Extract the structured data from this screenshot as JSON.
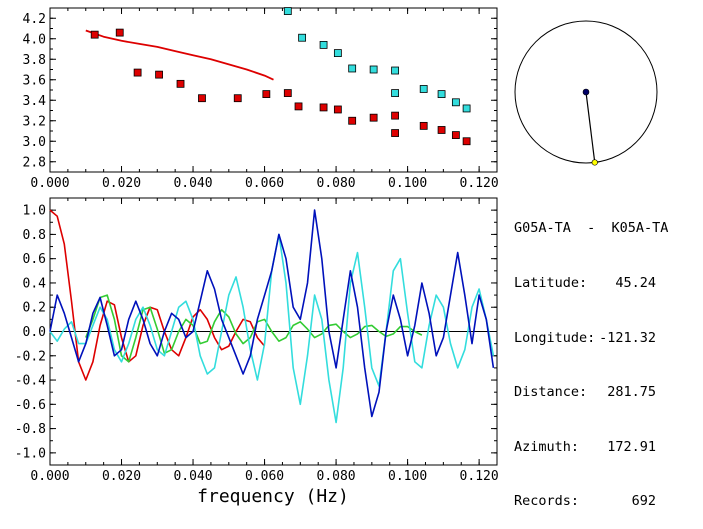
{
  "info": {
    "title": "G05A-TA  -  K05A-TA",
    "rows": [
      {
        "label": "Latitude:",
        "value": "45.24"
      },
      {
        "label": "Longitude:",
        "value": "-121.32"
      },
      {
        "label": "Distance:",
        "value": "281.75"
      },
      {
        "label": "Azimuth:",
        "value": "172.91"
      },
      {
        "label": "Records:",
        "value": "692"
      }
    ]
  },
  "azimuth_deg": 172.91,
  "colors": {
    "red": "#dd0000",
    "cyan": "#33dddd",
    "blue": "#0011bb",
    "green": "#33cc33",
    "station": "#000066",
    "marker": "#ffff00"
  },
  "chart_data": [
    {
      "type": "scatter",
      "xlabel": "",
      "ylabel": "",
      "xlim": [
        0.0,
        0.125
      ],
      "ylim": [
        2.7,
        4.3
      ],
      "xticks": [
        "0.000",
        "0.020",
        "0.040",
        "0.060",
        "0.080",
        "0.100",
        "0.120"
      ],
      "yticks": [
        "2.8",
        "3.0",
        "3.2",
        "3.4",
        "3.6",
        "3.8",
        "4.0",
        "4.2"
      ],
      "series": [
        {
          "color": "red",
          "mode": "line",
          "x": [
            0.01,
            0.015,
            0.02,
            0.025,
            0.03,
            0.035,
            0.04,
            0.045,
            0.05,
            0.055,
            0.06,
            0.0625
          ],
          "y": [
            4.08,
            4.02,
            3.98,
            3.95,
            3.92,
            3.88,
            3.84,
            3.8,
            3.75,
            3.7,
            3.64,
            3.6
          ]
        },
        {
          "color": "red",
          "mode": "markers",
          "x": [
            0.0125,
            0.0195,
            0.0245,
            0.0305,
            0.0365,
            0.0425,
            0.0525,
            0.0605,
            0.0665,
            0.0695,
            0.0765,
            0.0805,
            0.0845,
            0.0905,
            0.0965,
            0.0965,
            0.1045,
            0.1095,
            0.1135,
            0.1165
          ],
          "y": [
            4.04,
            4.06,
            3.67,
            3.65,
            3.56,
            3.42,
            3.42,
            3.46,
            3.47,
            3.34,
            3.33,
            3.31,
            3.2,
            3.23,
            3.25,
            3.08,
            3.15,
            3.11,
            3.06,
            3.0
          ]
        },
        {
          "color": "cyan",
          "mode": "markers",
          "x": [
            0.0665,
            0.0705,
            0.0765,
            0.0805,
            0.0845,
            0.0905,
            0.0965,
            0.0965,
            0.1045,
            0.1095,
            0.1135,
            0.1165
          ],
          "y": [
            4.27,
            4.01,
            3.94,
            3.86,
            3.71,
            3.7,
            3.69,
            3.47,
            3.51,
            3.46,
            3.38,
            3.32
          ]
        }
      ]
    },
    {
      "type": "line",
      "xlabel": "frequency (Hz)",
      "ylabel": "",
      "xlim": [
        0.0,
        0.125
      ],
      "ylim": [
        -1.1,
        1.1
      ],
      "xticks": [
        "0.000",
        "0.020",
        "0.040",
        "0.060",
        "0.080",
        "0.100",
        "0.120"
      ],
      "yticks": [
        "1.0",
        "0.8",
        "0.6",
        "0.4",
        "0.2",
        "0.0",
        "-0.2",
        "-0.4",
        "-0.6",
        "-0.8",
        "-1.0"
      ],
      "series": [
        {
          "color": "red",
          "x": [
            0.0,
            0.002,
            0.004,
            0.006,
            0.008,
            0.01,
            0.012,
            0.014,
            0.016,
            0.018,
            0.02,
            0.022,
            0.024,
            0.026,
            0.028,
            0.03,
            0.032,
            0.034,
            0.036,
            0.038,
            0.04,
            0.042,
            0.044,
            0.046,
            0.048,
            0.05,
            0.052,
            0.054,
            0.056,
            0.058,
            0.06
          ],
          "y": [
            1.0,
            0.95,
            0.72,
            0.25,
            -0.25,
            -0.4,
            -0.25,
            0.05,
            0.25,
            0.22,
            -0.05,
            -0.25,
            -0.2,
            0.05,
            0.2,
            0.18,
            0.0,
            -0.15,
            -0.2,
            -0.05,
            0.12,
            0.18,
            0.1,
            -0.05,
            -0.15,
            -0.12,
            0.0,
            0.1,
            0.08,
            -0.05,
            -0.12
          ]
        },
        {
          "color": "green",
          "x": [
            0.01,
            0.012,
            0.014,
            0.016,
            0.018,
            0.02,
            0.022,
            0.024,
            0.026,
            0.028,
            0.03,
            0.032,
            0.034,
            0.036,
            0.038,
            0.04,
            0.042,
            0.044,
            0.046,
            0.048,
            0.05,
            0.052,
            0.054,
            0.056,
            0.058,
            0.06,
            0.062,
            0.064,
            0.066,
            0.068,
            0.07,
            0.072,
            0.074,
            0.076,
            0.078,
            0.08,
            0.082,
            0.084,
            0.086,
            0.088,
            0.09,
            0.092,
            0.094,
            0.096,
            0.098,
            0.1,
            0.102,
            0.104
          ],
          "y": [
            -0.05,
            0.1,
            0.28,
            0.3,
            0.1,
            -0.2,
            -0.25,
            -0.05,
            0.18,
            0.2,
            0.02,
            -0.18,
            -0.15,
            0.0,
            0.1,
            0.05,
            -0.1,
            -0.08,
            0.08,
            0.18,
            0.12,
            -0.02,
            -0.1,
            -0.05,
            0.08,
            0.1,
            0.0,
            -0.08,
            -0.05,
            0.05,
            0.08,
            0.02,
            -0.05,
            -0.02,
            0.05,
            0.06,
            0.0,
            -0.05,
            -0.02,
            0.04,
            0.05,
            0.0,
            -0.04,
            -0.02,
            0.04,
            0.04,
            0.0,
            -0.03
          ]
        },
        {
          "color": "cyan",
          "x": [
            0.0,
            0.002,
            0.004,
            0.006,
            0.008,
            0.01,
            0.012,
            0.014,
            0.016,
            0.018,
            0.02,
            0.022,
            0.024,
            0.026,
            0.028,
            0.03,
            0.032,
            0.034,
            0.036,
            0.038,
            0.04,
            0.042,
            0.044,
            0.046,
            0.048,
            0.05,
            0.052,
            0.054,
            0.056,
            0.058,
            0.06,
            0.062,
            0.064,
            0.066,
            0.068,
            0.07,
            0.072,
            0.074,
            0.076,
            0.078,
            0.08,
            0.082,
            0.084,
            0.086,
            0.088,
            0.09,
            0.092,
            0.094,
            0.096,
            0.098,
            0.1,
            0.102,
            0.104,
            0.106,
            0.108,
            0.11,
            0.112,
            0.114,
            0.116,
            0.118,
            0.12,
            0.122,
            0.124
          ],
          "y": [
            0.0,
            -0.08,
            0.02,
            0.08,
            -0.1,
            -0.1,
            0.05,
            0.2,
            0.1,
            -0.15,
            -0.25,
            -0.1,
            0.1,
            0.2,
            0.05,
            -0.15,
            -0.2,
            0.0,
            0.2,
            0.25,
            0.1,
            -0.2,
            -0.35,
            -0.3,
            0.0,
            0.3,
            0.45,
            0.2,
            -0.15,
            -0.4,
            -0.1,
            0.5,
            0.8,
            0.4,
            -0.3,
            -0.6,
            -0.2,
            0.3,
            0.1,
            -0.4,
            -0.75,
            -0.3,
            0.4,
            0.65,
            0.2,
            -0.3,
            -0.45,
            0.0,
            0.5,
            0.6,
            0.15,
            -0.25,
            -0.3,
            0.05,
            0.3,
            0.2,
            -0.1,
            -0.3,
            -0.15,
            0.2,
            0.35,
            0.1,
            -0.2
          ]
        },
        {
          "color": "blue",
          "x": [
            0.0,
            0.002,
            0.004,
            0.006,
            0.008,
            0.01,
            0.012,
            0.014,
            0.016,
            0.018,
            0.02,
            0.022,
            0.024,
            0.026,
            0.028,
            0.03,
            0.032,
            0.034,
            0.036,
            0.038,
            0.04,
            0.042,
            0.044,
            0.046,
            0.048,
            0.05,
            0.052,
            0.054,
            0.056,
            0.058,
            0.06,
            0.062,
            0.064,
            0.066,
            0.068,
            0.07,
            0.072,
            0.074,
            0.076,
            0.078,
            0.08,
            0.082,
            0.084,
            0.086,
            0.088,
            0.09,
            0.092,
            0.094,
            0.096,
            0.098,
            0.1,
            0.102,
            0.104,
            0.106,
            0.108,
            0.11,
            0.112,
            0.114,
            0.116,
            0.118,
            0.12,
            0.122,
            0.124
          ],
          "y": [
            0.0,
            0.3,
            0.15,
            -0.05,
            -0.25,
            -0.1,
            0.15,
            0.28,
            0.05,
            -0.2,
            -0.15,
            0.1,
            0.25,
            0.1,
            -0.1,
            -0.2,
            0.0,
            0.15,
            0.1,
            -0.05,
            0.0,
            0.25,
            0.5,
            0.35,
            0.1,
            -0.05,
            -0.2,
            -0.35,
            -0.2,
            0.1,
            0.3,
            0.5,
            0.8,
            0.6,
            0.2,
            0.1,
            0.4,
            1.0,
            0.6,
            0.0,
            -0.3,
            0.1,
            0.5,
            0.2,
            -0.3,
            -0.7,
            -0.5,
            0.0,
            0.3,
            0.1,
            -0.2,
            0.05,
            0.4,
            0.15,
            -0.2,
            -0.05,
            0.3,
            0.65,
            0.3,
            -0.1,
            0.3,
            0.1,
            -0.3
          ]
        }
      ]
    }
  ]
}
